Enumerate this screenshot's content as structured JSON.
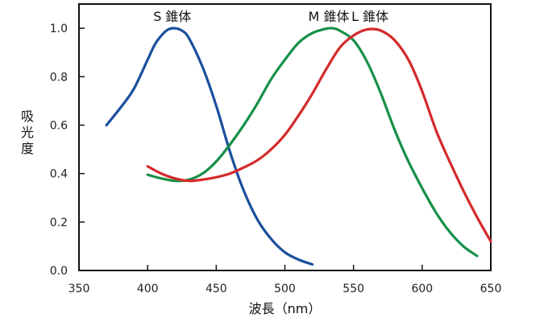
{
  "chart_data": {
    "type": "line",
    "title": "",
    "xlabel": "波長（nm）",
    "ylabel": "吸光度",
    "xlim": [
      350,
      650
    ],
    "ylim": [
      0.0,
      1.1
    ],
    "xticks": [
      350,
      400,
      450,
      500,
      550,
      600,
      650
    ],
    "yticks": [
      0.0,
      0.2,
      0.4,
      0.6,
      0.8,
      1.0
    ],
    "xtick_labels": [
      "350",
      "400",
      "450",
      "500",
      "550",
      "600",
      "650"
    ],
    "ytick_labels": [
      "0.0",
      "0.2",
      "0.4",
      "0.6",
      "0.8",
      "1.0"
    ],
    "grid": false,
    "legend": "none",
    "series": [
      {
        "name": "S 錐体",
        "color": "#1a4f9c",
        "label_at": [
          418,
          1.05
        ],
        "x": [
          370,
          380,
          390,
          400,
          405,
          410,
          415,
          420,
          425,
          430,
          440,
          450,
          460,
          470,
          480,
          490,
          500,
          510,
          520
        ],
        "y": [
          0.6,
          0.67,
          0.75,
          0.87,
          0.93,
          0.97,
          0.995,
          1.0,
          0.99,
          0.96,
          0.84,
          0.68,
          0.49,
          0.33,
          0.21,
          0.13,
          0.075,
          0.045,
          0.025
        ]
      },
      {
        "name": "M 錐体",
        "color": "#169048",
        "label_at": [
          532,
          1.05
        ],
        "x": [
          400,
          410,
          420,
          430,
          440,
          450,
          460,
          470,
          480,
          490,
          500,
          510,
          520,
          530,
          535,
          540,
          550,
          560,
          570,
          580,
          590,
          600,
          610,
          620,
          630,
          640
        ],
        "y": [
          0.395,
          0.38,
          0.37,
          0.375,
          0.4,
          0.45,
          0.52,
          0.6,
          0.69,
          0.79,
          0.87,
          0.94,
          0.98,
          0.998,
          1.0,
          0.99,
          0.95,
          0.86,
          0.73,
          0.58,
          0.45,
          0.34,
          0.24,
          0.16,
          0.1,
          0.06
        ]
      },
      {
        "name": "L 錐体",
        "color": "#d42a2a",
        "label_at": [
          562,
          1.05
        ],
        "x": [
          400,
          410,
          420,
          430,
          440,
          450,
          460,
          470,
          480,
          490,
          500,
          510,
          520,
          530,
          540,
          550,
          560,
          570,
          580,
          590,
          600,
          610,
          620,
          630,
          640,
          650
        ],
        "y": [
          0.43,
          0.4,
          0.38,
          0.37,
          0.375,
          0.385,
          0.4,
          0.425,
          0.455,
          0.5,
          0.56,
          0.64,
          0.73,
          0.83,
          0.92,
          0.97,
          0.995,
          0.99,
          0.95,
          0.87,
          0.74,
          0.58,
          0.45,
          0.33,
          0.22,
          0.12
        ]
      }
    ]
  }
}
